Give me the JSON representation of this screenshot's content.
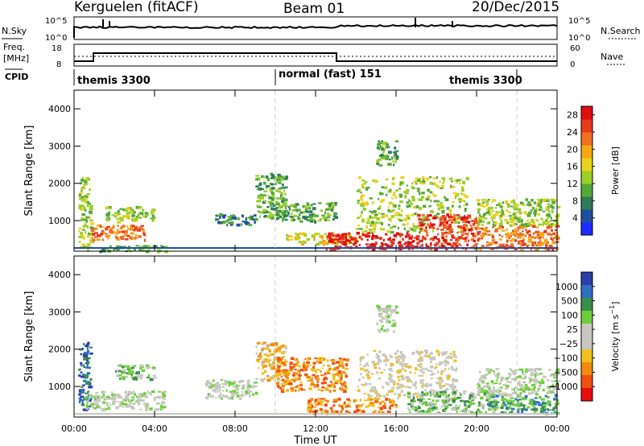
{
  "header": {
    "station": "Kerguelen (fitACF)",
    "beam": "Beam 01",
    "date": "20/Dec/2015"
  },
  "status_panels": {
    "nsky_label": "N.Sky",
    "nsky_ticks": [
      "10^5",
      "10^0"
    ],
    "nsearch_label": "N.Search",
    "nsearch_ticks": [
      "10^5",
      "10^0"
    ],
    "freq_label": "Freq.",
    "freq_unit": "[MHz]",
    "freq_ticks": [
      "18",
      "8"
    ],
    "nave_label": "Nave",
    "nave_ticks": [
      "60",
      "0"
    ],
    "cpid_label": "CPID",
    "cpid_segments": [
      {
        "label": "themis 3300",
        "start_h": 0,
        "end_h": 10
      },
      {
        "label": "normal (fast) 151",
        "start_h": 10,
        "end_h": 22
      },
      {
        "label": "themis 3300",
        "start_h": 22,
        "end_h": 24
      }
    ]
  },
  "chart_data": [
    {
      "type": "heatmap",
      "title": "",
      "ylabel": "Slant Range [km]",
      "yticks": [
        "1000",
        "2000",
        "3000",
        "4000"
      ],
      "ylim": [
        180,
        4500
      ],
      "xlim": [
        0,
        24
      ],
      "colorbar": {
        "label": "Power [dB]",
        "ticks": [
          "4",
          "8",
          "12",
          "16",
          "20",
          "24",
          "28"
        ],
        "range": [
          0,
          30
        ],
        "colors": [
          "#1a2cff",
          "#1f4fa0",
          "#2f7a5a",
          "#55a83a",
          "#9ccf2a",
          "#e8d21c",
          "#f5a814",
          "#f07020",
          "#e63a1e",
          "#e00e0e"
        ]
      },
      "regions": [
        {
          "t0": 0.2,
          "t1": 0.8,
          "r0": 300,
          "r1": 2200,
          "level": 4
        },
        {
          "t0": 0.8,
          "t1": 3.5,
          "r0": 500,
          "r1": 900,
          "level": 7
        },
        {
          "t0": 1.5,
          "t1": 4.0,
          "r0": 1000,
          "r1": 1400,
          "level": 4
        },
        {
          "t0": 0.5,
          "t1": 4.5,
          "r0": 200,
          "r1": 350,
          "level": 3
        },
        {
          "t0": 7.0,
          "t1": 9.0,
          "r0": 900,
          "r1": 1200,
          "level": 2
        },
        {
          "t0": 9.0,
          "t1": 10.5,
          "r0": 1100,
          "r1": 2300,
          "level": 3
        },
        {
          "t0": 10.0,
          "t1": 13.0,
          "r0": 1000,
          "r1": 1500,
          "level": 3
        },
        {
          "t0": 10.5,
          "t1": 14.0,
          "r0": 400,
          "r1": 700,
          "level": 5
        },
        {
          "t0": 12.5,
          "t1": 17.0,
          "r0": 250,
          "r1": 700,
          "level": 9
        },
        {
          "t0": 14.0,
          "t1": 19.5,
          "r0": 700,
          "r1": 2200,
          "level": 4
        },
        {
          "t0": 15.0,
          "t1": 16.0,
          "r0": 2500,
          "r1": 3200,
          "level": 3
        },
        {
          "t0": 17.0,
          "t1": 20.0,
          "r0": 250,
          "r1": 1200,
          "level": 8
        },
        {
          "t0": 20.0,
          "t1": 24.0,
          "r0": 250,
          "r1": 900,
          "level": 7
        },
        {
          "t0": 20.0,
          "t1": 24.0,
          "r0": 900,
          "r1": 1600,
          "level": 4
        }
      ]
    },
    {
      "type": "heatmap",
      "title": "",
      "ylabel": "Slant Range [km]",
      "yticks": [
        "1000",
        "2000",
        "3000",
        "4000"
      ],
      "ylim": [
        180,
        4500
      ],
      "xlim": [
        0,
        24
      ],
      "colorbar": {
        "label": "Velocity [m s^-1]",
        "ticks": [
          "1000",
          "500",
          "100",
          "25",
          "−25",
          "−100",
          "−500",
          "−1000"
        ],
        "range": [
          -1000,
          1000
        ],
        "colors": [
          "#2a3fa8",
          "#2f6fc0",
          "#3a8f4a",
          "#6fcf3a",
          "#c8c8c0",
          "#c8c8c0",
          "#f0c020",
          "#f08a10",
          "#f05010",
          "#e80c0c"
        ]
      },
      "regions": [
        {
          "t0": 0.2,
          "t1": 0.8,
          "r0": 400,
          "r1": 2200,
          "level": 1
        },
        {
          "t0": 0.5,
          "t1": 4.5,
          "r0": 400,
          "r1": 900,
          "level": 4
        },
        {
          "t0": 2.0,
          "t1": 4.0,
          "r0": 1200,
          "r1": 1600,
          "level": 3
        },
        {
          "t0": 6.5,
          "t1": 9.0,
          "r0": 700,
          "r1": 1200,
          "level": 4
        },
        {
          "t0": 9.0,
          "t1": 10.5,
          "r0": 1200,
          "r1": 2200,
          "level": 6
        },
        {
          "t0": 10.0,
          "t1": 13.5,
          "r0": 900,
          "r1": 1800,
          "level": 7
        },
        {
          "t0": 11.5,
          "t1": 16.0,
          "r0": 300,
          "r1": 700,
          "level": 7
        },
        {
          "t0": 14.0,
          "t1": 19.0,
          "r0": 700,
          "r1": 2000,
          "level": 5
        },
        {
          "t0": 15.0,
          "t1": 16.0,
          "r0": 2500,
          "r1": 3200,
          "level": 4
        },
        {
          "t0": 16.5,
          "t1": 21.0,
          "r0": 300,
          "r1": 900,
          "level": 3
        },
        {
          "t0": 20.5,
          "t1": 24.0,
          "r0": 300,
          "r1": 800,
          "level": 2
        },
        {
          "t0": 20.0,
          "t1": 24.0,
          "r0": 800,
          "r1": 1500,
          "level": 4
        }
      ]
    }
  ],
  "xaxis": {
    "label": "Time UT",
    "ticks": [
      "00:00",
      "04:00",
      "08:00",
      "12:00",
      "16:00",
      "20:00",
      "00:00"
    ]
  }
}
